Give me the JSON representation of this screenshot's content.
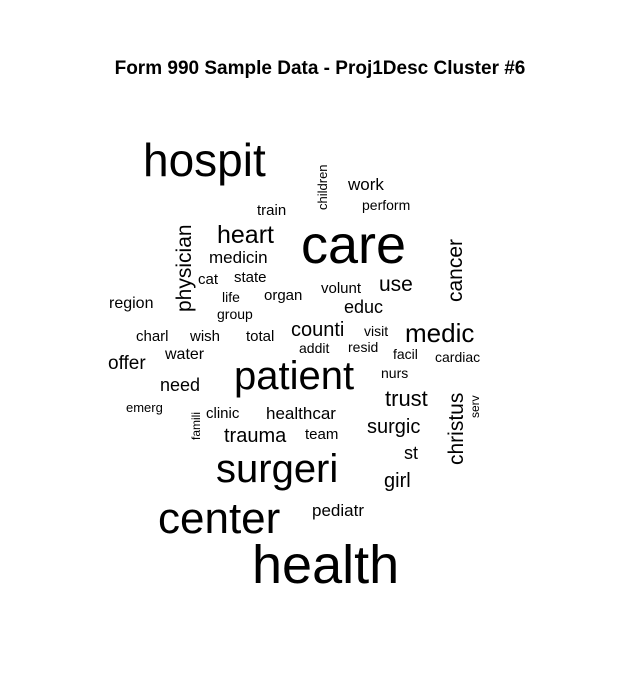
{
  "chart_data": {
    "type": "wordcloud",
    "title": "Form 990 Sample Data - Proj1Desc Cluster #6",
    "words": [
      {
        "text": "health",
        "weight": 10
      },
      {
        "text": "care",
        "weight": 10
      },
      {
        "text": "surgeri",
        "weight": 8
      },
      {
        "text": "patient",
        "weight": 8
      },
      {
        "text": "center",
        "weight": 9
      },
      {
        "text": "hospit",
        "weight": 9
      },
      {
        "text": "medic",
        "weight": 6
      },
      {
        "text": "heart",
        "weight": 5
      },
      {
        "text": "christus",
        "weight": 4
      },
      {
        "text": "cancer",
        "weight": 4
      },
      {
        "text": "physician",
        "weight": 4
      },
      {
        "text": "counti",
        "weight": 4
      },
      {
        "text": "trust",
        "weight": 4
      },
      {
        "text": "trauma",
        "weight": 4
      },
      {
        "text": "use",
        "weight": 4
      },
      {
        "text": "surgic",
        "weight": 3
      },
      {
        "text": "girl",
        "weight": 3
      },
      {
        "text": "work",
        "weight": 3
      },
      {
        "text": "educ",
        "weight": 3
      },
      {
        "text": "medicin",
        "weight": 3
      },
      {
        "text": "offer",
        "weight": 3
      },
      {
        "text": "need",
        "weight": 3
      },
      {
        "text": "st",
        "weight": 3
      },
      {
        "text": "healthcar",
        "weight": 3
      },
      {
        "text": "water",
        "weight": 3
      },
      {
        "text": "pediatr",
        "weight": 3
      },
      {
        "text": "region",
        "weight": 3
      },
      {
        "text": "organ",
        "weight": 3
      },
      {
        "text": "volunt",
        "weight": 3
      },
      {
        "text": "state",
        "weight": 2
      },
      {
        "text": "cat",
        "weight": 2
      },
      {
        "text": "life",
        "weight": 2
      },
      {
        "text": "total",
        "weight": 2
      },
      {
        "text": "wish",
        "weight": 2
      },
      {
        "text": "charl",
        "weight": 2
      },
      {
        "text": "clinic",
        "weight": 2
      },
      {
        "text": "team",
        "weight": 2
      },
      {
        "text": "addit",
        "weight": 2
      },
      {
        "text": "resid",
        "weight": 2
      },
      {
        "text": "visit",
        "weight": 2
      },
      {
        "text": "facil",
        "weight": 2
      },
      {
        "text": "cardiac",
        "weight": 2
      },
      {
        "text": "nurs",
        "weight": 2
      },
      {
        "text": "train",
        "weight": 2
      },
      {
        "text": "perform",
        "weight": 2
      },
      {
        "text": "children",
        "weight": 2
      },
      {
        "text": "group",
        "weight": 2
      },
      {
        "text": "emerg",
        "weight": 2
      },
      {
        "text": "famili",
        "weight": 1
      },
      {
        "text": "serv",
        "weight": 1
      }
    ]
  }
}
